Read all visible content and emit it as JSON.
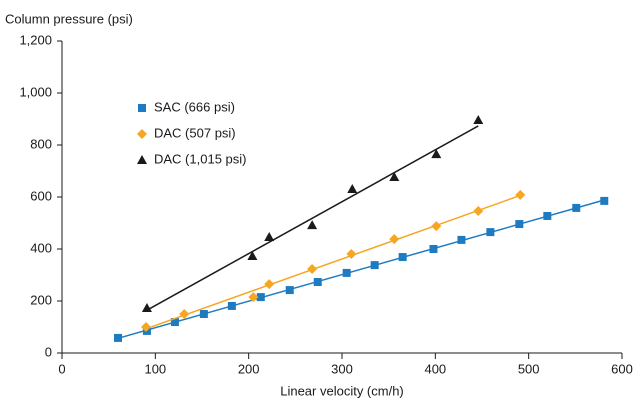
{
  "chart_data": {
    "type": "scatter",
    "y_label": "Column pressure (psi)",
    "x_label": "Linear velocity (cm/h)",
    "xlim": [
      0,
      600
    ],
    "xticks": [
      0,
      100,
      200,
      300,
      400,
      500,
      600
    ],
    "ylim": [
      0,
      1200
    ],
    "yticks": [
      0,
      200,
      400,
      600,
      800,
      {
        "value": 1000,
        "label": "1,000"
      },
      {
        "value": 1200,
        "label": "1,200"
      }
    ],
    "trendline": true,
    "series": [
      {
        "name": "SAC (666 psi)",
        "color": "#1f7bc1",
        "marker": "square",
        "x": [
          60,
          91,
          121,
          152,
          182,
          213,
          244,
          274,
          305,
          335,
          365,
          398,
          428,
          459,
          490,
          520,
          551,
          581
        ],
        "values": [
          58,
          85,
          119,
          150,
          181,
          215,
          242,
          273,
          308,
          338,
          369,
          400,
          435,
          465,
          496,
          527,
          558,
          585
        ]
      },
      {
        "name": "DAC (507 psi)",
        "color": "#f5a623",
        "marker": "diamond",
        "x": [
          90,
          131,
          205,
          222,
          268,
          310,
          356,
          401,
          446,
          491
        ],
        "values": [
          100,
          150,
          215,
          265,
          323,
          381,
          438,
          488,
          546,
          608
        ]
      },
      {
        "name": "DAC (1,015 psi)",
        "color": "#1a1a1a",
        "marker": "triangle",
        "x": [
          91,
          204,
          222,
          268,
          311,
          356,
          401,
          446
        ],
        "values": [
          173,
          373,
          446,
          492,
          631,
          677,
          765,
          896
        ]
      }
    ]
  }
}
